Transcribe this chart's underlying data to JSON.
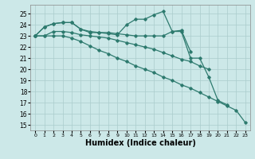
{
  "line_color": "#2d7a6e",
  "bg_color": "#cce8e8",
  "grid_color": "#aacccc",
  "xlabel": "Humidex (Indice chaleur)",
  "xlabel_fontsize": 7,
  "ylim": [
    14.5,
    25.8
  ],
  "xlim": [
    -0.5,
    23.5
  ],
  "yticks": [
    15,
    16,
    17,
    18,
    19,
    20,
    21,
    22,
    23,
    24,
    25
  ],
  "xticks": [
    0,
    1,
    2,
    3,
    4,
    5,
    6,
    7,
    8,
    9,
    10,
    11,
    12,
    13,
    14,
    15,
    16,
    17,
    18,
    19,
    20,
    21,
    22,
    23
  ],
  "series_spiky": [
    23.0,
    23.8,
    24.1,
    24.2,
    24.2,
    23.6,
    23.3,
    23.3,
    23.2,
    23.1,
    24.0,
    24.5,
    24.5,
    24.9,
    25.2,
    23.4,
    23.5,
    21.6,
    null,
    null,
    null,
    null,
    null,
    null
  ],
  "series_upper": [
    23.0,
    23.8,
    24.1,
    24.2,
    24.2,
    23.6,
    23.4,
    23.3,
    23.3,
    23.2,
    23.1,
    23.0,
    23.0,
    23.0,
    23.0,
    23.4,
    23.4,
    21.0,
    21.0,
    19.3,
    17.2,
    16.8,
    null,
    null
  ],
  "series_mid": [
    23.0,
    23.0,
    23.4,
    23.4,
    23.3,
    23.1,
    23.0,
    22.9,
    22.8,
    22.6,
    22.4,
    22.2,
    22.0,
    21.8,
    21.5,
    21.2,
    20.9,
    20.7,
    20.3,
    20.0,
    null,
    null,
    null,
    null
  ],
  "series_low": [
    23.0,
    23.0,
    23.0,
    23.0,
    22.8,
    22.5,
    22.1,
    21.7,
    21.4,
    21.0,
    20.7,
    20.3,
    20.0,
    19.7,
    19.3,
    19.0,
    18.6,
    18.3,
    17.9,
    17.5,
    17.1,
    16.7,
    16.3,
    15.2
  ]
}
